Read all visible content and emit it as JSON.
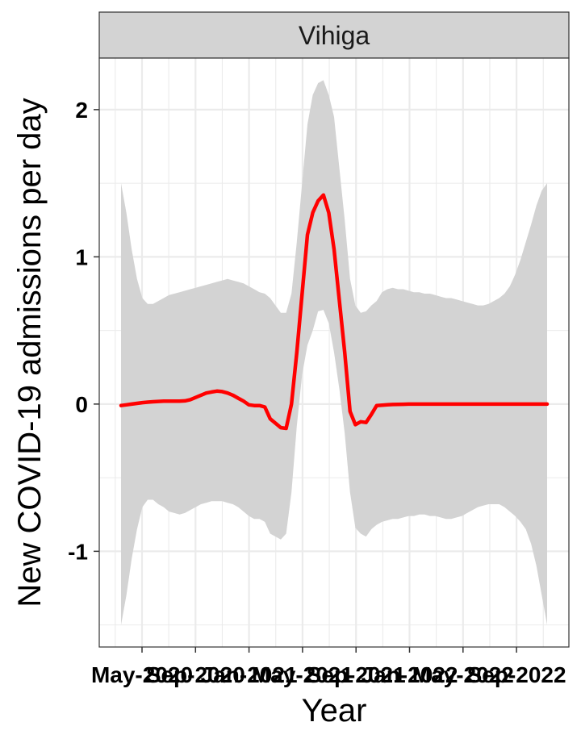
{
  "chart_data": {
    "type": "line",
    "facet_label": "Vihiga",
    "xlabel": "Year",
    "ylabel": "New COVID-19 admissions per day",
    "ylim": [
      -1.65,
      2.35
    ],
    "y_ticks": [
      -1,
      0,
      1,
      2
    ],
    "y_tick_labels": [
      "-1",
      "0",
      "1",
      "2"
    ],
    "x_tick_labels": [
      "May-2020",
      "Sep-2020",
      "Jan-2021",
      "May-2021",
      "Sep-2021",
      "Jan-2022",
      "May-2022",
      "Sep-2022"
    ],
    "grid": true,
    "colors": {
      "line": "#ff0000",
      "ribbon": "#d3d3d3",
      "strip": "#d3d3d3",
      "grid": "#ebebeb"
    },
    "series": [
      {
        "x": [
          0,
          1,
          2,
          3,
          4,
          5,
          6,
          7,
          8,
          9,
          10,
          11,
          12,
          13,
          14,
          15,
          16,
          17,
          18,
          19,
          20,
          21,
          22,
          23,
          24,
          25,
          26,
          27,
          28,
          29,
          30,
          31,
          32,
          33,
          34,
          35,
          36,
          37,
          38,
          39,
          40,
          41,
          42,
          43,
          44,
          45,
          46,
          47,
          48,
          49,
          50,
          51,
          52,
          53,
          54,
          55,
          56,
          57,
          58,
          59,
          60,
          61,
          62,
          63,
          64,
          65,
          66,
          67,
          68,
          69,
          70,
          71,
          72,
          73,
          74,
          75,
          76,
          77,
          78,
          79,
          80
        ],
        "values": [
          -0.01,
          -0.005,
          0.0,
          0.005,
          0.01,
          0.013,
          0.016,
          0.018,
          0.02,
          0.02,
          0.02,
          0.02,
          0.022,
          0.03,
          0.045,
          0.06,
          0.075,
          0.082,
          0.088,
          0.085,
          0.075,
          0.06,
          0.04,
          0.02,
          -0.005,
          -0.01,
          -0.01,
          -0.02,
          -0.1,
          -0.13,
          -0.16,
          -0.165,
          0.0,
          0.35,
          0.75,
          1.15,
          1.3,
          1.38,
          1.42,
          1.3,
          1.05,
          0.7,
          0.35,
          -0.05,
          -0.14,
          -0.12,
          -0.125,
          -0.07,
          -0.01,
          -0.008,
          -0.005,
          -0.003,
          -0.002,
          -0.001,
          0.0,
          0.0,
          0.0,
          0.0,
          0.0,
          0.0,
          0.0,
          0.0,
          0.0,
          0.0,
          0.0,
          0.0,
          0.0,
          0.0,
          0.0,
          0.0,
          0.0,
          0.0,
          0.0,
          0.0,
          0.0,
          0.0,
          0.0,
          0.0,
          0.0,
          0.0,
          0.0
        ],
        "lower": [
          -1.5,
          -1.3,
          -1.05,
          -0.85,
          -0.7,
          -0.65,
          -0.65,
          -0.68,
          -0.7,
          -0.73,
          -0.74,
          -0.75,
          -0.74,
          -0.72,
          -0.7,
          -0.68,
          -0.67,
          -0.66,
          -0.66,
          -0.66,
          -0.67,
          -0.68,
          -0.7,
          -0.73,
          -0.76,
          -0.78,
          -0.78,
          -0.8,
          -0.88,
          -0.9,
          -0.92,
          -0.88,
          -0.6,
          -0.15,
          0.2,
          0.4,
          0.5,
          0.63,
          0.64,
          0.55,
          0.35,
          0.1,
          -0.2,
          -0.6,
          -0.84,
          -0.88,
          -0.9,
          -0.85,
          -0.82,
          -0.8,
          -0.79,
          -0.78,
          -0.78,
          -0.77,
          -0.76,
          -0.76,
          -0.75,
          -0.75,
          -0.76,
          -0.76,
          -0.77,
          -0.78,
          -0.78,
          -0.77,
          -0.76,
          -0.74,
          -0.72,
          -0.7,
          -0.69,
          -0.68,
          -0.68,
          -0.68,
          -0.7,
          -0.73,
          -0.76,
          -0.8,
          -0.85,
          -0.95,
          -1.1,
          -1.3,
          -1.5
        ],
        "upper": [
          1.5,
          1.3,
          1.05,
          0.85,
          0.72,
          0.68,
          0.68,
          0.7,
          0.72,
          0.74,
          0.75,
          0.76,
          0.77,
          0.78,
          0.79,
          0.8,
          0.81,
          0.82,
          0.83,
          0.84,
          0.85,
          0.84,
          0.83,
          0.82,
          0.8,
          0.78,
          0.76,
          0.75,
          0.72,
          0.67,
          0.62,
          0.62,
          0.75,
          1.1,
          1.5,
          1.9,
          2.1,
          2.18,
          2.2,
          2.1,
          1.95,
          1.6,
          1.25,
          0.85,
          0.67,
          0.62,
          0.63,
          0.67,
          0.7,
          0.76,
          0.78,
          0.79,
          0.78,
          0.78,
          0.77,
          0.76,
          0.76,
          0.75,
          0.75,
          0.74,
          0.73,
          0.72,
          0.72,
          0.71,
          0.7,
          0.69,
          0.68,
          0.67,
          0.67,
          0.68,
          0.7,
          0.72,
          0.75,
          0.8,
          0.88,
          0.98,
          1.1,
          1.22,
          1.35,
          1.45,
          1.5
        ]
      }
    ]
  }
}
